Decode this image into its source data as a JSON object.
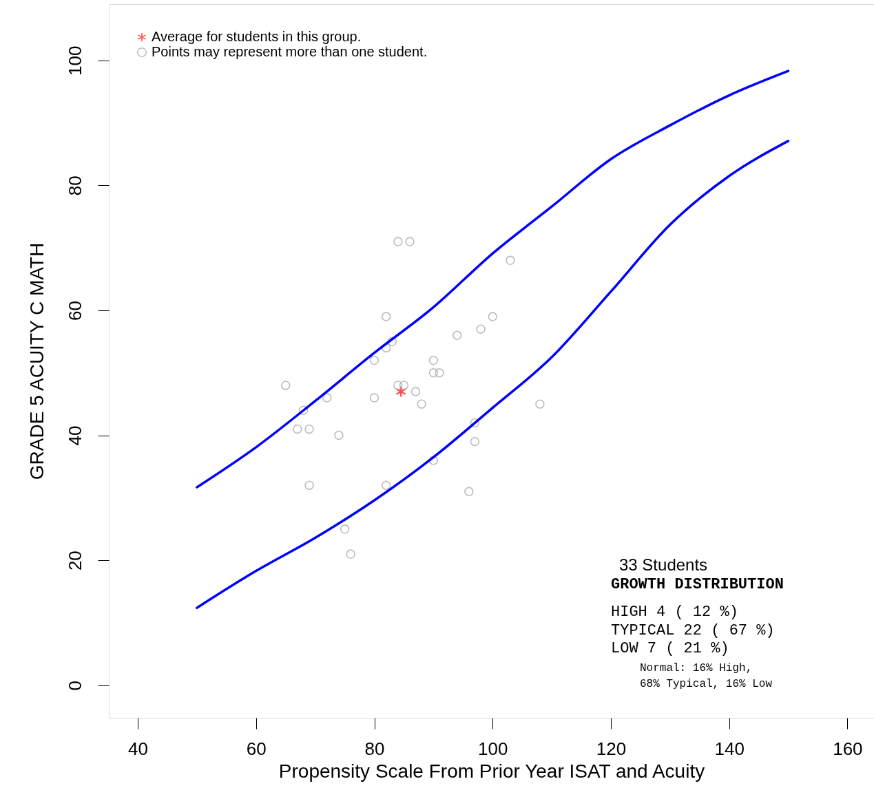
{
  "chart_data": {
    "type": "scatter",
    "xlabel": "Propensity Scale From Prior Year ISAT and Acuity",
    "ylabel": "GRADE 5 ACUITY C MATH",
    "xlim": [
      35.1,
      164.5
    ],
    "ylim": [
      -5.2,
      109
    ],
    "xticks": [
      40,
      60,
      80,
      100,
      120,
      140,
      160
    ],
    "yticks": [
      0,
      20,
      40,
      60,
      80,
      100
    ],
    "grid": false,
    "legend": "top left",
    "series": [
      {
        "name": "Average for students in this group.",
        "color": "#ff0000",
        "marker": "cross",
        "x": [
          84.5
        ],
        "values": [
          47
        ]
      },
      {
        "name": "Points may represent more than one student.",
        "color": "#a0a0a0",
        "marker": "circle",
        "x": [
          65,
          68,
          67,
          69,
          69,
          72,
          74,
          75,
          76,
          80,
          80,
          82,
          82,
          83,
          82,
          84,
          86,
          84,
          85,
          87,
          88,
          90,
          90,
          91,
          90,
          94,
          96,
          97,
          97,
          98,
          100,
          103,
          108
        ],
        "values": [
          48,
          44,
          41,
          41,
          32,
          46,
          40,
          25,
          21,
          52,
          46,
          59,
          54,
          55,
          32,
          71,
          71,
          48,
          48,
          47,
          45,
          52,
          50,
          50,
          36,
          56,
          31,
          42,
          39,
          57,
          59,
          68,
          45
        ]
      },
      {
        "type": "line",
        "color": "#0000ff",
        "line_style": "solid",
        "x": [
          50,
          60,
          70,
          80,
          90,
          100,
          110,
          120,
          130,
          140,
          150
        ],
        "values": [
          31.7,
          38.1,
          45.5,
          53.2,
          60.5,
          69.1,
          76.6,
          84.2,
          89.6,
          94.4,
          98.3
        ]
      },
      {
        "type": "line",
        "color": "#0000ff",
        "line_style": "solid",
        "x": [
          50,
          60,
          70,
          80,
          90,
          100,
          110,
          120,
          130,
          140,
          150
        ],
        "values": [
          12.4,
          18.3,
          23.6,
          29.6,
          36.5,
          44.4,
          52.5,
          63,
          73.7,
          81.5,
          87.1
        ]
      }
    ],
    "annotations": [
      "33 Students",
      "GROWTH DISTRIBUTION",
      "HIGH 4 ( 12 %)",
      "TYPICAL 22 ( 67 %)",
      "LOW 7 ( 21 %)",
      "Normal: 16% High,",
      "68% Typical, 16% Low"
    ]
  }
}
